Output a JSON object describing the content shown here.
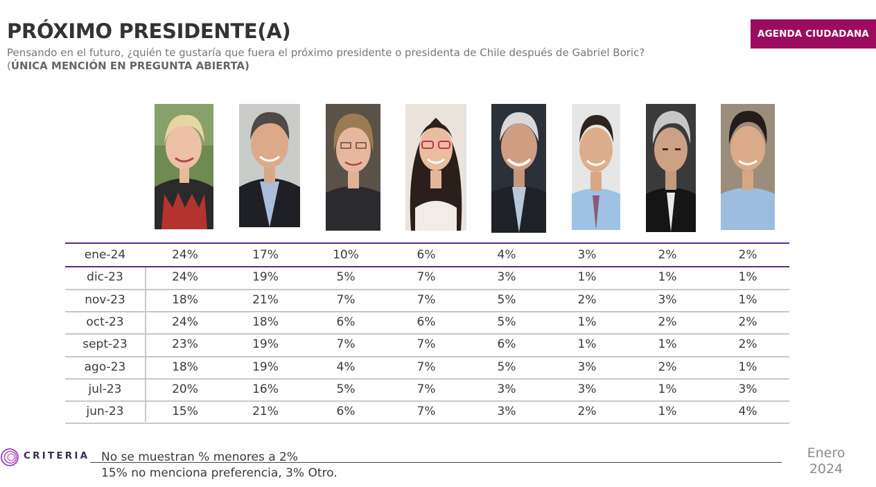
{
  "header": {
    "title": "PRÓXIMO PRESIDENTE(A)",
    "subtitle_main": "Pensando en el futuro, ¿quién te gustaría que fuera el próximo presidente o presidenta de Chile después de Gabriel Boric? (",
    "subtitle_bold": "ÚNICA MENCIÓN EN PREGUNTA ABIERTA)",
    "brand": "AGENDA CIUDADANA"
  },
  "colors": {
    "accent": "#9b0b5f",
    "rule": "#5b2a86",
    "grid": "#c8c8c8"
  },
  "chart_data": {
    "type": "table",
    "rows": [
      {
        "label": "ene-24",
        "values": [
          "24%",
          "17%",
          "10%",
          "6%",
          "4%",
          "3%",
          "2%",
          "2%"
        ]
      },
      {
        "label": "dic-23",
        "values": [
          "24%",
          "19%",
          "5%",
          "7%",
          "3%",
          "1%",
          "1%",
          "1%"
        ]
      },
      {
        "label": "nov-23",
        "values": [
          "18%",
          "21%",
          "7%",
          "7%",
          "5%",
          "2%",
          "3%",
          "1%"
        ]
      },
      {
        "label": "oct-23",
        "values": [
          "24%",
          "18%",
          "6%",
          "6%",
          "5%",
          "1%",
          "2%",
          "2%"
        ]
      },
      {
        "label": "sept-23",
        "values": [
          "23%",
          "19%",
          "7%",
          "7%",
          "6%",
          "1%",
          "1%",
          "2%"
        ]
      },
      {
        "label": "ago-23",
        "values": [
          "18%",
          "19%",
          "4%",
          "7%",
          "5%",
          "3%",
          "2%",
          "1%"
        ]
      },
      {
        "label": "jul-23",
        "values": [
          "20%",
          "16%",
          "5%",
          "7%",
          "3%",
          "3%",
          "1%",
          "3%"
        ]
      },
      {
        "label": "jun-23",
        "values": [
          "15%",
          "21%",
          "6%",
          "7%",
          "3%",
          "2%",
          "1%",
          "4%"
        ]
      }
    ]
  },
  "footer": {
    "brand": "CRITERIA",
    "note1": "No se muestran % menores a 2%",
    "note2": "15% no menciona preferencia, 3% Otro.",
    "month": "Enero",
    "year": "2024"
  }
}
